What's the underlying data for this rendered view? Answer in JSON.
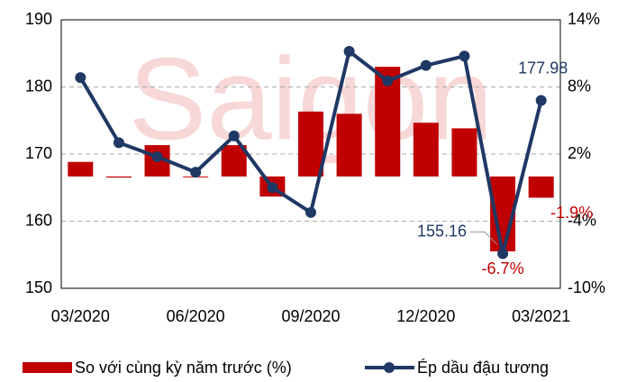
{
  "chart_data": {
    "type": "bar_line",
    "watermark": "Saigon",
    "categories": [
      "03/2020",
      null,
      null,
      "06/2020",
      null,
      null,
      "09/2020",
      null,
      null,
      "12/2020",
      null,
      null,
      "03/2021"
    ],
    "series": [
      {
        "name": "So với cùng kỳ năm trước (%)",
        "type": "bar",
        "axis": "y2",
        "color": "#c00000",
        "values": [
          1.3,
          -0.1,
          2.8,
          0,
          2.8,
          -1.8,
          5.8,
          5.6,
          9.8,
          4.8,
          4.3,
          -6.7,
          -1.9
        ],
        "value_labels": [
          null,
          null,
          null,
          null,
          null,
          null,
          null,
          null,
          null,
          null,
          null,
          "-6.7%",
          "-1.9%"
        ]
      },
      {
        "name": "Ép dầu đậu tương",
        "type": "line",
        "axis": "y",
        "color": "#1f3864",
        "values": [
          181.4,
          171.7,
          169.6,
          167.3,
          172.7,
          165.0,
          161.3,
          185.3,
          180.9,
          183.2,
          184.6,
          155.16,
          177.98
        ],
        "value_labels": [
          null,
          null,
          null,
          null,
          null,
          null,
          null,
          null,
          null,
          null,
          null,
          "155.16",
          "177.98"
        ]
      }
    ],
    "ylim": [
      150,
      190
    ],
    "yticks": [
      150,
      160,
      170,
      180,
      190
    ],
    "y2lim": [
      -10,
      14
    ],
    "y2ticks": [
      {
        "value": -10,
        "label": "-10%"
      },
      {
        "value": -4,
        "label": "-4%"
      },
      {
        "value": 2,
        "label": "2%"
      },
      {
        "value": 8,
        "label": "8%"
      },
      {
        "value": 14,
        "label": "14%"
      }
    ],
    "grid": true,
    "legend": "bottom"
  }
}
